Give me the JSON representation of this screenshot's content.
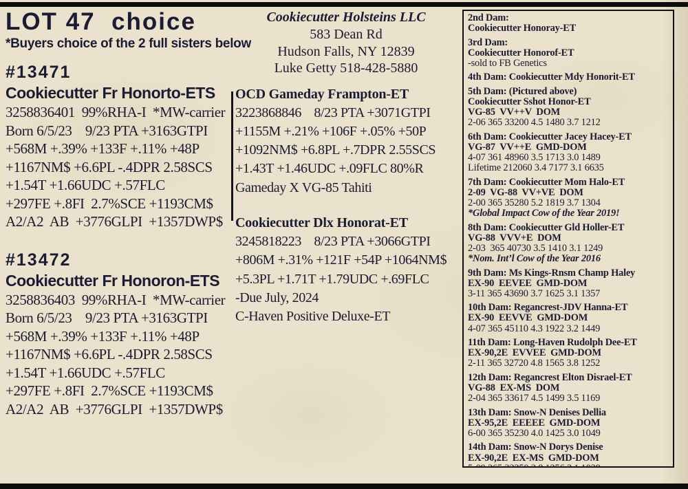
{
  "header": {
    "lot_title": "LOT 47  choice",
    "lot_subtitle": "*Buyers choice of the 2 full sisters below"
  },
  "lots": [
    {
      "id": "#13471",
      "name": "Cookiecutter Fr Honorto-ETS",
      "lines": [
        "3258836401  99%RHA-I  *MW-carrier",
        "Born 6/5/23    9/23 PTA +3163GTPI",
        "+568M +.39% +133F +.11% +48P",
        "+1167NM$ +6.6PL -.4DPR 2.58SCS",
        "+1.54T +1.66UDC +.57FLC",
        "+297FE +.8FI  2.7%SCE +1193CM$",
        "A2/A2  AB  +3776GLPI  +1357DWP$"
      ]
    },
    {
      "id": "#13472",
      "name": "Cookiecutter Fr Honoron-ETS",
      "lines": [
        "3258836403  99%RHA-I  *MW-carrier",
        "Born 6/5/23    9/23 PTA +3163GTPI",
        "+568M +.39% +133F +.11% +48P",
        "+1167NM$ +6.6PL -.4DPR 2.58SCS",
        "+1.54T +1.66UDC +.57FLC",
        "+297FE +.8FI  2.7%SCE +1193CM$",
        "A2/A2  AB  +3776GLPI  +1357DWP$"
      ]
    }
  ],
  "farm": {
    "name": "Cookiecutter Holsteins LLC",
    "address1": "583 Dean Rd",
    "address2": "Hudson Falls, NY 12839",
    "contact": "Luke Getty 518-428-5880"
  },
  "middle_blocks": [
    {
      "title": "OCD Gameday Frampton-ET",
      "lines": [
        "3223868846    8/23 PTA +3071GTPI",
        "+1155M +.21% +106F +.05% +50P",
        "+1092NM$ +6.8PL +.7DPR 2.55SCS",
        "+1.43T +1.46UDC +.09FLC 80%R",
        "Gameday X VG-85 Tahiti"
      ]
    },
    {
      "title": "Cookiecutter Dlx Honorat-ET",
      "lines": [
        "3245818223    8/23 PTA +3066GTPI",
        "+806M +.31% +121F +54P +1064NM$",
        "+5.3PL +1.71T +1.79UDC +.69FLC",
        "-Due July, 2024",
        "C-Haven Positive Deluxe-ET"
      ]
    }
  ],
  "pedigree": {
    "entries": [
      {
        "lines": [
          {
            "text": "2nd Dam:",
            "style": "bold"
          },
          {
            "text": "Cookiecutter Honoray-ET",
            "style": "bold"
          }
        ]
      },
      {
        "lines": [
          {
            "text": "3rd Dam:",
            "style": "bold"
          },
          {
            "text": "Cookiecutter Honorof-ET",
            "style": "bold"
          },
          {
            "text": "-sold to FB Genetics",
            "style": "regular"
          }
        ]
      },
      {
        "lines": [
          {
            "text": "4th Dam: Cookiecutter Mdy Honorit-ET",
            "style": "bold"
          }
        ]
      },
      {
        "lines": [
          {
            "text": "5th Dam: (Pictured above)",
            "style": "bold"
          },
          {
            "text": "Cookiecutter Sshot Honor-ET",
            "style": "bold"
          },
          {
            "text": "VG-85  VV++V  DOM",
            "style": "bold"
          },
          {
            "text": "2-06 365 33200 4.5 1480 3.7 1212",
            "style": "regular"
          }
        ]
      },
      {
        "lines": [
          {
            "text": "6th Dam: Cookiecutter Jacey Hacey-ET",
            "style": "bold"
          },
          {
            "text": "VG-87  VV++E  GMD-DOM",
            "style": "bold"
          },
          {
            "text": "4-07 361 48960 3.5 1713 3.0 1489",
            "style": "regular"
          },
          {
            "text": "Lifetime 212060 3.4 7177 3.1 6635",
            "style": "regular"
          }
        ]
      },
      {
        "lines": [
          {
            "text": "7th Dam: Cookiecutter Mom Halo-ET",
            "style": "bold"
          },
          {
            "text": "2-09  VG-88  VV+VE  DOM",
            "style": "bold"
          },
          {
            "text": "2-00 365 35280 5.2 1819 3.7 1304",
            "style": "regular"
          },
          {
            "text": "*Global Impact Cow of the Year 2019!",
            "style": "bold-italic"
          }
        ]
      },
      {
        "lines": [
          {
            "text": "8th Dam: Cookiecutter Gld Holler-ET",
            "style": "bold"
          },
          {
            "text": "VG-88  VVV+E  DOM",
            "style": "bold"
          },
          {
            "text": "2-03  365 40730 3.5 1410 3.1 1249",
            "style": "regular"
          },
          {
            "text": "*Nom. Int’l Cow of the Year 2016",
            "style": "bold-italic"
          }
        ]
      },
      {
        "lines": [
          {
            "text": "9th Dam: Ms Kings-Rnsm Champ Haley",
            "style": "bold"
          },
          {
            "text": "EX-90  EEVEE  GMD-DOM",
            "style": "bold"
          },
          {
            "text": "3-11 365 43690 3.7 1625 3.1 1357",
            "style": "regular"
          }
        ]
      },
      {
        "lines": [
          {
            "text": "10th Dam: Regancrest-JDV Hanna-ET",
            "style": "bold"
          },
          {
            "text": "EX-90  EEVVE  GMD-DOM",
            "style": "bold"
          },
          {
            "text": "4-07 365 45110 4.3 1922 3.2 1449",
            "style": "regular"
          }
        ]
      },
      {
        "lines": [
          {
            "text": "11th Dam: Long-Haven Rudolph Dee-ET",
            "style": "bold"
          },
          {
            "text": "EX-90,2E  EVVEE  GMD-DOM",
            "style": "bold"
          },
          {
            "text": "2-11 365 32720 4.8 1565 3.8 1252",
            "style": "regular"
          }
        ]
      },
      {
        "lines": [
          {
            "text": "12th Dam: Regancrest Elton Disrael-ET",
            "style": "bold"
          },
          {
            "text": "VG-88  EX-MS  DOM",
            "style": "bold"
          },
          {
            "text": "2-04 365 33617 4.5 1499 3.5 1169",
            "style": "regular"
          }
        ]
      },
      {
        "lines": [
          {
            "text": "13th Dam: Snow-N Denises Dellia",
            "style": "bold"
          },
          {
            "text": "EX-95,2E  EEEEE  GMD-DOM",
            "style": "bold"
          },
          {
            "text": "6-00 365 35230 4.0 1425 3.0 1049",
            "style": "regular"
          }
        ]
      },
      {
        "lines": [
          {
            "text": "14th Dam: Snow-N Dorys Denise",
            "style": "bold"
          },
          {
            "text": "EX-90,2E  EX-MS  GMD-DOM",
            "style": "bold"
          },
          {
            "text": "5-09 365 33350 3.8 1256 3.1 1038",
            "style": "regular"
          }
        ]
      }
    ]
  },
  "colors": {
    "paper": "#eae2cc",
    "ink": "#1b1b33",
    "bar": "#0d0d0d"
  }
}
